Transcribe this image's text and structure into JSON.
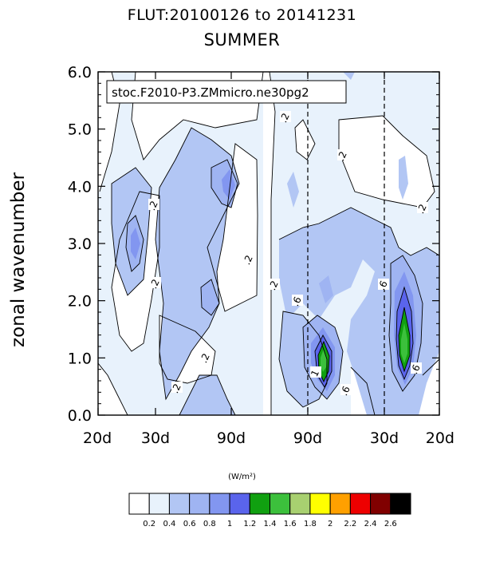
{
  "chart_data": {
    "type": "heatmap",
    "title": "FLUT:20100126 to 20141231",
    "subtitle": "SUMMER",
    "legend_label": "stoc.F2010-P3.ZMmicro.ne30pg2",
    "ylabel": "zonal wavenumber",
    "xlabel": "",
    "units": "(W/m²)",
    "ylim": [
      0,
      6
    ],
    "y_ticks": [
      "0.0",
      "1.0",
      "2.0",
      "3.0",
      "4.0",
      "5.0",
      "6.0"
    ],
    "x_ticks": [
      "20d",
      "30d",
      "90d",
      "90d",
      "30d",
      "20d"
    ],
    "colorbar_labels": [
      "0.2",
      "0.4",
      "0.6",
      "0.8",
      "1",
      "1.2",
      "1.4",
      "1.6",
      "1.8",
      "2",
      "2.2",
      "2.4",
      "2.6"
    ],
    "colorbar_colors": [
      "#ffffff",
      "#e8f2fc",
      "#b2c6f4",
      "#9fb4f2",
      "#8296f0",
      "#5a64ec",
      "#10a010",
      "#3cc03c",
      "#a8d070",
      "#ffff00",
      "#ffa000",
      "#ee0000",
      "#800000",
      "#000000"
    ],
    "contour_labels": [
      ".2",
      ".2",
      ".2",
      ".2",
      ".2",
      ".2",
      ".2",
      ".2",
      ".2",
      ".6",
      ".6",
      ".6",
      ".6",
      "1"
    ]
  }
}
